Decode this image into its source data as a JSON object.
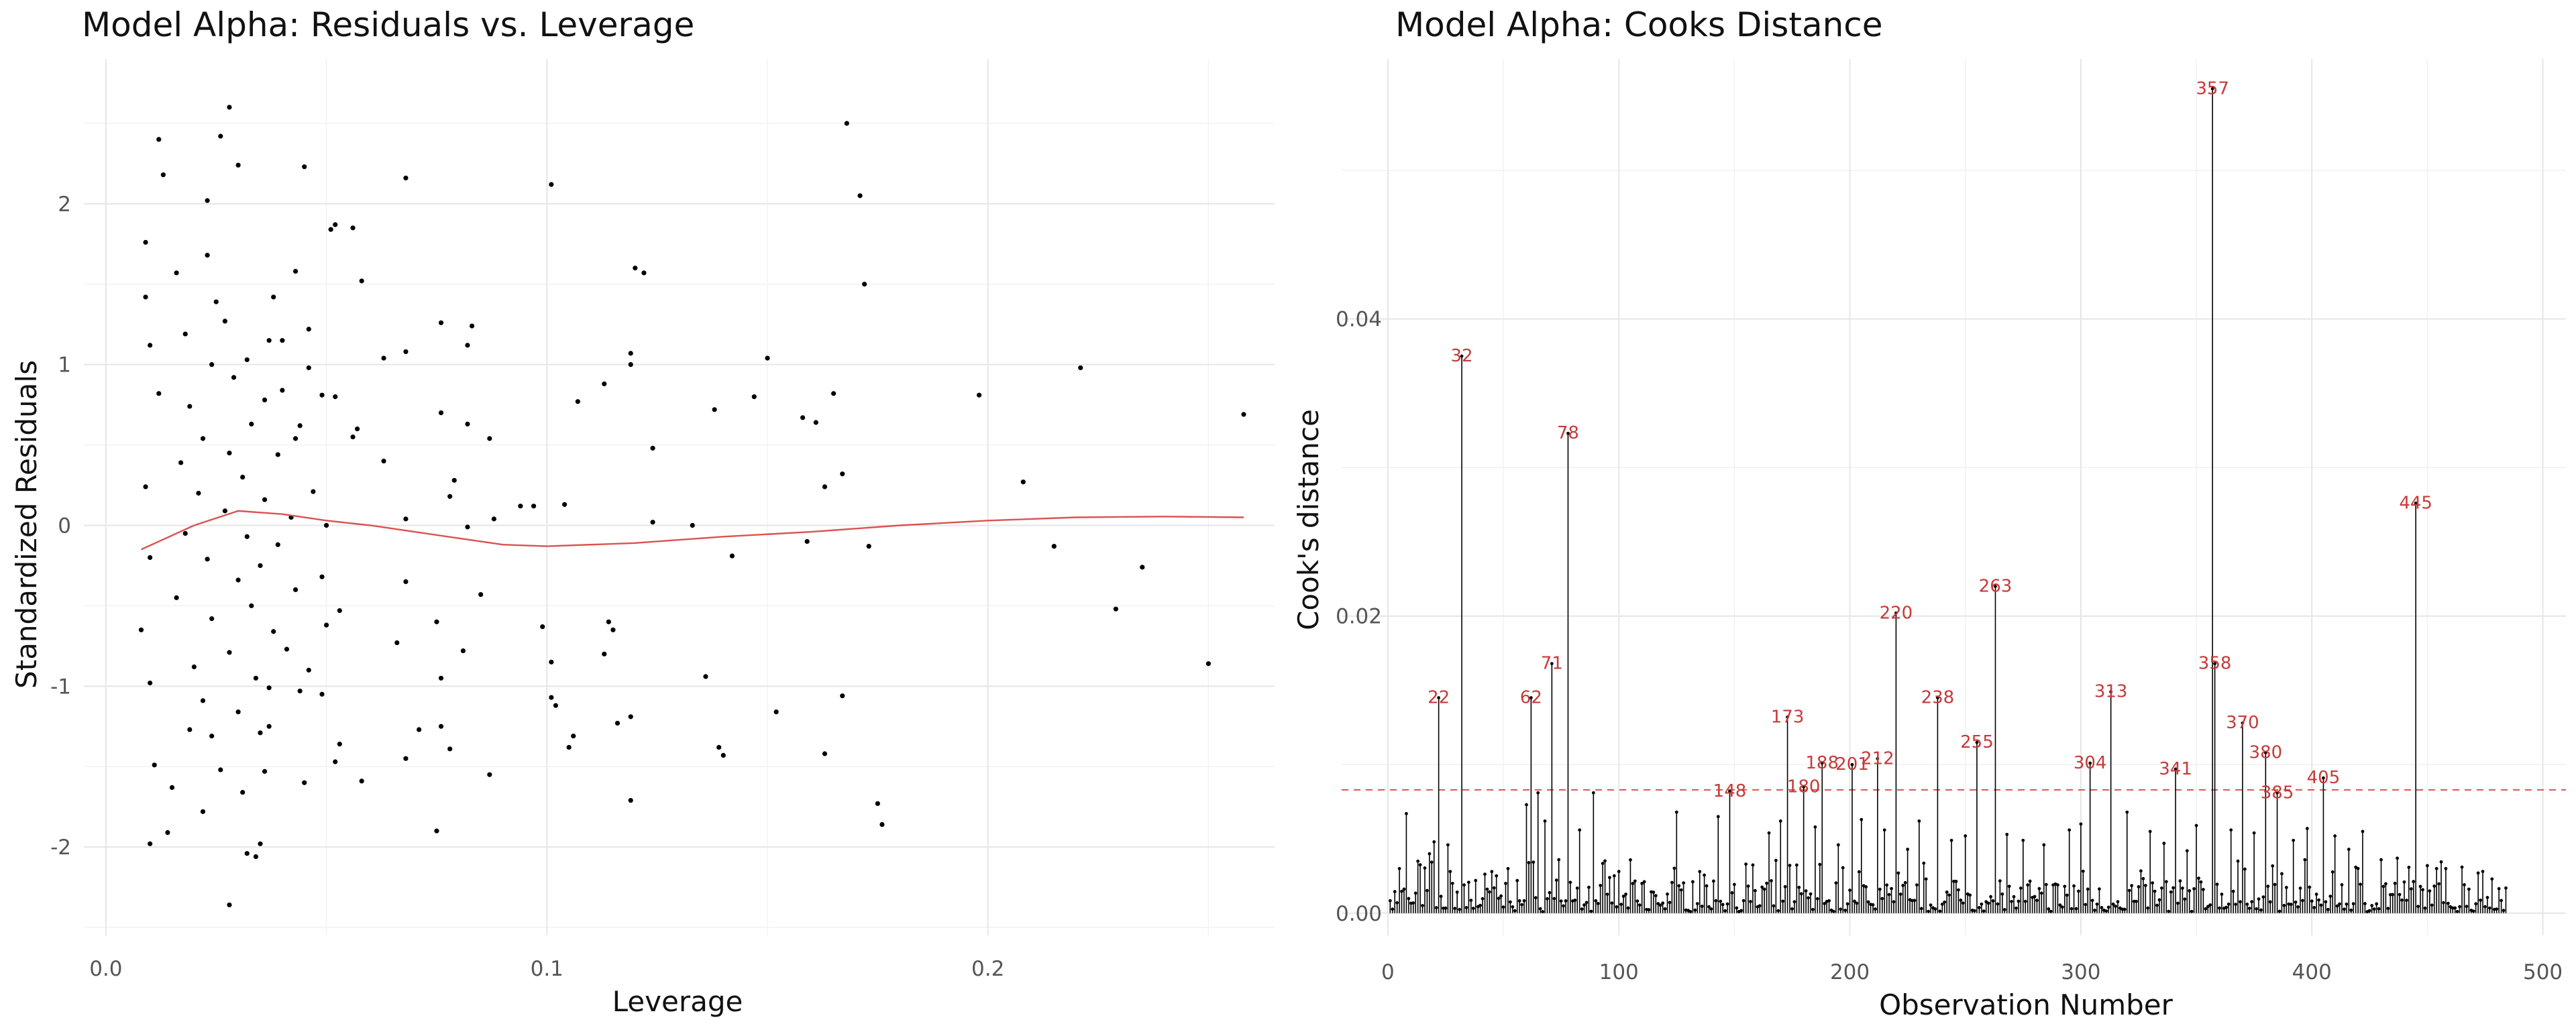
{
  "chart_data": [
    {
      "type": "scatter",
      "title": "Model Alpha: Residuals vs. Leverage",
      "xlabel": "Leverage",
      "ylabel": "Standardized Residuals",
      "xlim": [
        -0.005,
        0.265
      ],
      "ylim": [
        -2.55,
        2.9
      ],
      "xticks": [
        0.0,
        0.1,
        0.2
      ],
      "xtick_labels": [
        "0.0",
        "0.1",
        "0.2"
      ],
      "yticks": [
        -2,
        -1,
        0,
        1,
        2
      ],
      "ytick_labels": [
        "-2",
        "-1",
        "0",
        "1",
        "2"
      ],
      "grid": true,
      "point_color": "#000000",
      "smooth_color": "#d9534f",
      "points": [
        [
          0.168,
          2.5
        ],
        [
          0.171,
          2.05
        ],
        [
          0.172,
          1.5
        ],
        [
          0.101,
          2.12
        ],
        [
          0.068,
          2.16
        ],
        [
          0.045,
          2.23
        ],
        [
          0.12,
          1.6
        ],
        [
          0.122,
          1.57
        ],
        [
          0.119,
          1.07
        ],
        [
          0.119,
          1.0
        ],
        [
          0.113,
          0.88
        ],
        [
          0.124,
          0.48
        ],
        [
          0.107,
          0.77
        ],
        [
          0.097,
          0.12
        ],
        [
          0.104,
          0.13
        ],
        [
          0.124,
          0.02
        ],
        [
          0.133,
          0.0
        ],
        [
          0.138,
          0.72
        ],
        [
          0.147,
          0.8
        ],
        [
          0.15,
          1.04
        ],
        [
          0.158,
          0.67
        ],
        [
          0.161,
          0.64
        ],
        [
          0.165,
          0.82
        ],
        [
          0.167,
          0.32
        ],
        [
          0.163,
          0.24
        ],
        [
          0.173,
          -0.13
        ],
        [
          0.159,
          -0.1
        ],
        [
          0.142,
          -0.19
        ],
        [
          0.198,
          0.81
        ],
        [
          0.208,
          0.27
        ],
        [
          0.221,
          0.98
        ],
        [
          0.215,
          -0.13
        ],
        [
          0.235,
          -0.26
        ],
        [
          0.229,
          -0.52
        ],
        [
          0.25,
          -0.86
        ],
        [
          0.258,
          0.69
        ],
        [
          0.099,
          -0.63
        ],
        [
          0.101,
          -0.85
        ],
        [
          0.101,
          -1.07
        ],
        [
          0.102,
          -1.12
        ],
        [
          0.105,
          -1.38
        ],
        [
          0.106,
          -1.31
        ],
        [
          0.114,
          -0.6
        ],
        [
          0.115,
          -0.65
        ],
        [
          0.113,
          -0.8
        ],
        [
          0.119,
          -1.19
        ],
        [
          0.116,
          -1.23
        ],
        [
          0.119,
          -1.71
        ],
        [
          0.136,
          -0.94
        ],
        [
          0.139,
          -1.38
        ],
        [
          0.14,
          -1.43
        ],
        [
          0.152,
          -1.16
        ],
        [
          0.167,
          -1.06
        ],
        [
          0.163,
          -1.42
        ],
        [
          0.175,
          -1.73
        ],
        [
          0.176,
          -1.86
        ],
        [
          0.094,
          0.12
        ],
        [
          0.087,
          0.54
        ],
        [
          0.085,
          -0.43
        ],
        [
          0.081,
          -0.78
        ],
        [
          0.075,
          -0.6
        ],
        [
          0.076,
          -0.95
        ],
        [
          0.078,
          -1.39
        ],
        [
          0.076,
          -1.25
        ],
        [
          0.087,
          -1.55
        ],
        [
          0.075,
          -1.9
        ],
        [
          0.082,
          1.12
        ],
        [
          0.083,
          1.24
        ],
        [
          0.076,
          1.26
        ],
        [
          0.076,
          0.7
        ],
        [
          0.082,
          0.63
        ],
        [
          0.078,
          0.18
        ],
        [
          0.079,
          0.28
        ],
        [
          0.082,
          -0.01
        ],
        [
          0.088,
          0.04
        ],
        [
          0.068,
          1.08
        ],
        [
          0.063,
          1.04
        ],
        [
          0.058,
          1.52
        ],
        [
          0.057,
          0.6
        ],
        [
          0.063,
          0.4
        ],
        [
          0.068,
          0.04
        ],
        [
          0.068,
          -0.35
        ],
        [
          0.066,
          -0.73
        ],
        [
          0.071,
          -1.27
        ],
        [
          0.068,
          -1.45
        ],
        [
          0.058,
          -1.59
        ],
        [
          0.056,
          1.85
        ],
        [
          0.051,
          1.84
        ],
        [
          0.052,
          1.87
        ],
        [
          0.056,
          0.55
        ],
        [
          0.052,
          0.8
        ],
        [
          0.049,
          0.81
        ],
        [
          0.046,
          0.98
        ],
        [
          0.043,
          1.58
        ],
        [
          0.046,
          1.22
        ],
        [
          0.043,
          0.54
        ],
        [
          0.047,
          0.21
        ],
        [
          0.05,
          0.0
        ],
        [
          0.049,
          -0.32
        ],
        [
          0.053,
          -0.53
        ],
        [
          0.05,
          -0.62
        ],
        [
          0.046,
          -0.9
        ],
        [
          0.049,
          -1.05
        ],
        [
          0.045,
          -1.6
        ],
        [
          0.053,
          -1.36
        ],
        [
          0.052,
          -1.47
        ],
        [
          0.044,
          -1.03
        ],
        [
          0.041,
          -0.77
        ],
        [
          0.043,
          -0.4
        ],
        [
          0.042,
          0.05
        ],
        [
          0.044,
          0.62
        ],
        [
          0.04,
          0.84
        ],
        [
          0.04,
          1.15
        ],
        [
          0.037,
          1.15
        ],
        [
          0.038,
          1.42
        ],
        [
          0.037,
          -1.01
        ],
        [
          0.037,
          -1.25
        ],
        [
          0.036,
          -1.53
        ],
        [
          0.035,
          -1.98
        ],
        [
          0.032,
          -2.04
        ],
        [
          0.034,
          -2.06
        ],
        [
          0.028,
          -2.36
        ],
        [
          0.028,
          2.6
        ],
        [
          0.026,
          2.42
        ],
        [
          0.023,
          2.02
        ],
        [
          0.03,
          2.24
        ],
        [
          0.012,
          2.4
        ],
        [
          0.013,
          2.18
        ],
        [
          0.009,
          1.76
        ],
        [
          0.009,
          1.42
        ],
        [
          0.01,
          1.12
        ],
        [
          0.012,
          0.82
        ],
        [
          0.009,
          0.24
        ],
        [
          0.01,
          -0.2
        ],
        [
          0.008,
          -0.65
        ],
        [
          0.01,
          -0.98
        ],
        [
          0.011,
          -1.49
        ],
        [
          0.01,
          -1.98
        ],
        [
          0.015,
          -1.63
        ],
        [
          0.014,
          -1.91
        ],
        [
          0.016,
          1.57
        ],
        [
          0.018,
          1.19
        ],
        [
          0.019,
          0.74
        ],
        [
          0.017,
          0.39
        ],
        [
          0.018,
          -0.05
        ],
        [
          0.016,
          -0.45
        ],
        [
          0.02,
          -0.88
        ],
        [
          0.019,
          -1.27
        ],
        [
          0.022,
          -1.78
        ],
        [
          0.024,
          -1.31
        ],
        [
          0.023,
          1.68
        ],
        [
          0.025,
          1.39
        ],
        [
          0.024,
          1.0
        ],
        [
          0.022,
          0.54
        ],
        [
          0.021,
          0.2
        ],
        [
          0.023,
          -0.21
        ],
        [
          0.024,
          -0.58
        ],
        [
          0.022,
          -1.09
        ],
        [
          0.026,
          -1.52
        ],
        [
          0.027,
          1.27
        ],
        [
          0.029,
          0.92
        ],
        [
          0.028,
          0.45
        ],
        [
          0.027,
          0.09
        ],
        [
          0.03,
          -0.34
        ],
        [
          0.028,
          -0.79
        ],
        [
          0.03,
          -1.16
        ],
        [
          0.031,
          -1.66
        ],
        [
          0.032,
          1.03
        ],
        [
          0.033,
          0.63
        ],
        [
          0.031,
          0.3
        ],
        [
          0.032,
          -0.07
        ],
        [
          0.033,
          -0.5
        ],
        [
          0.034,
          -0.95
        ],
        [
          0.035,
          -1.29
        ],
        [
          0.036,
          0.78
        ],
        [
          0.036,
          0.16
        ],
        [
          0.035,
          -0.25
        ],
        [
          0.038,
          -0.66
        ],
        [
          0.039,
          0.44
        ],
        [
          0.039,
          -0.12
        ]
      ],
      "smooth_line": [
        [
          0.008,
          -0.15
        ],
        [
          0.02,
          0.0
        ],
        [
          0.03,
          0.09
        ],
        [
          0.04,
          0.07
        ],
        [
          0.05,
          0.03
        ],
        [
          0.06,
          0.0
        ],
        [
          0.07,
          -0.04
        ],
        [
          0.08,
          -0.08
        ],
        [
          0.09,
          -0.12
        ],
        [
          0.1,
          -0.13
        ],
        [
          0.12,
          -0.11
        ],
        [
          0.14,
          -0.07
        ],
        [
          0.16,
          -0.04
        ],
        [
          0.18,
          0.0
        ],
        [
          0.2,
          0.03
        ],
        [
          0.22,
          0.05
        ],
        [
          0.24,
          0.055
        ],
        [
          0.258,
          0.05
        ]
      ]
    },
    {
      "type": "bar",
      "title": "Model Alpha: Cooks Distance",
      "xlabel": "Observation Number",
      "ylabel": "Cook's distance",
      "xlim": [
        -20,
        510
      ],
      "ylim": [
        -0.0015,
        0.0575
      ],
      "xticks": [
        0,
        100,
        200,
        300,
        400,
        500
      ],
      "xtick_labels": [
        "0",
        "100",
        "200",
        "300",
        "400",
        "500"
      ],
      "yticks": [
        0,
        0.02,
        0.04
      ],
      "ytick_labels": [
        "0.00",
        "0.02",
        "0.04"
      ],
      "grid": true,
      "n_observations": 484,
      "threshold": 0.0083,
      "threshold_color": "#d9534f",
      "label_color": "#c73a3a",
      "bar_color": "#000000",
      "labeled_points": [
        {
          "x": 22,
          "y": 0.0145,
          "label": "22"
        },
        {
          "x": 32,
          "y": 0.0375,
          "label": "32"
        },
        {
          "x": 62,
          "y": 0.0145,
          "label": "62"
        },
        {
          "x": 71,
          "y": 0.0168,
          "label": "71"
        },
        {
          "x": 78,
          "y": 0.0323,
          "label": "78"
        },
        {
          "x": 148,
          "y": 0.0082,
          "label": "148"
        },
        {
          "x": 173,
          "y": 0.0132,
          "label": "173"
        },
        {
          "x": 180,
          "y": 0.0085,
          "label": "180"
        },
        {
          "x": 188,
          "y": 0.0101,
          "label": "188"
        },
        {
          "x": 201,
          "y": 0.01,
          "label": "201"
        },
        {
          "x": 212,
          "y": 0.0104,
          "label": "212"
        },
        {
          "x": 220,
          "y": 0.0202,
          "label": "220"
        },
        {
          "x": 238,
          "y": 0.0145,
          "label": "238"
        },
        {
          "x": 255,
          "y": 0.0115,
          "label": "255"
        },
        {
          "x": 263,
          "y": 0.022,
          "label": "263"
        },
        {
          "x": 304,
          "y": 0.0101,
          "label": "304"
        },
        {
          "x": 313,
          "y": 0.0149,
          "label": "313"
        },
        {
          "x": 341,
          "y": 0.0097,
          "label": "341"
        },
        {
          "x": 357,
          "y": 0.0555,
          "label": "357"
        },
        {
          "x": 358,
          "y": 0.0168,
          "label": "358"
        },
        {
          "x": 370,
          "y": 0.0128,
          "label": "370"
        },
        {
          "x": 380,
          "y": 0.0108,
          "label": "380"
        },
        {
          "x": 385,
          "y": 0.0081,
          "label": "385"
        },
        {
          "x": 405,
          "y": 0.0091,
          "label": "405"
        },
        {
          "x": 445,
          "y": 0.0276,
          "label": "445"
        }
      ],
      "unlabeled_points": [
        {
          "x": 5,
          "y": 0.003
        },
        {
          "x": 8,
          "y": 0.0067
        },
        {
          "x": 13,
          "y": 0.0035
        },
        {
          "x": 18,
          "y": 0.004
        },
        {
          "x": 20,
          "y": 0.0048
        },
        {
          "x": 26,
          "y": 0.0046
        },
        {
          "x": 38,
          "y": 0.0022
        },
        {
          "x": 45,
          "y": 0.0028
        },
        {
          "x": 52,
          "y": 0.003
        },
        {
          "x": 60,
          "y": 0.0073
        },
        {
          "x": 65,
          "y": 0.0081
        },
        {
          "x": 68,
          "y": 0.0062
        },
        {
          "x": 74,
          "y": 0.0036
        },
        {
          "x": 83,
          "y": 0.0056
        },
        {
          "x": 89,
          "y": 0.0081
        },
        {
          "x": 96,
          "y": 0.0024
        },
        {
          "x": 110,
          "y": 0.002
        },
        {
          "x": 125,
          "y": 0.0068
        },
        {
          "x": 135,
          "y": 0.0028
        },
        {
          "x": 143,
          "y": 0.0065
        },
        {
          "x": 155,
          "y": 0.0033
        },
        {
          "x": 165,
          "y": 0.0054
        },
        {
          "x": 170,
          "y": 0.0062
        },
        {
          "x": 185,
          "y": 0.0058
        },
        {
          "x": 195,
          "y": 0.0046
        },
        {
          "x": 205,
          "y": 0.0063
        },
        {
          "x": 215,
          "y": 0.0056
        },
        {
          "x": 225,
          "y": 0.0043
        },
        {
          "x": 230,
          "y": 0.0062
        },
        {
          "x": 244,
          "y": 0.0049
        },
        {
          "x": 250,
          "y": 0.0052
        },
        {
          "x": 268,
          "y": 0.0053
        },
        {
          "x": 275,
          "y": 0.0049
        },
        {
          "x": 284,
          "y": 0.0046
        },
        {
          "x": 295,
          "y": 0.0056
        },
        {
          "x": 300,
          "y": 0.006
        },
        {
          "x": 320,
          "y": 0.0068
        },
        {
          "x": 330,
          "y": 0.0055
        },
        {
          "x": 336,
          "y": 0.0047
        },
        {
          "x": 346,
          "y": 0.0042
        },
        {
          "x": 350,
          "y": 0.0059
        },
        {
          "x": 365,
          "y": 0.0056
        },
        {
          "x": 375,
          "y": 0.0054
        },
        {
          "x": 392,
          "y": 0.0049
        },
        {
          "x": 398,
          "y": 0.0057
        },
        {
          "x": 410,
          "y": 0.0052
        },
        {
          "x": 416,
          "y": 0.0043
        },
        {
          "x": 422,
          "y": 0.0055
        },
        {
          "x": 430,
          "y": 0.0036
        },
        {
          "x": 437,
          "y": 0.0037
        },
        {
          "x": 450,
          "y": 0.0032
        },
        {
          "x": 458,
          "y": 0.003
        },
        {
          "x": 465,
          "y": 0.0031
        },
        {
          "x": 472,
          "y": 0.0027
        },
        {
          "x": 478,
          "y": 0.0023
        }
      ]
    }
  ]
}
